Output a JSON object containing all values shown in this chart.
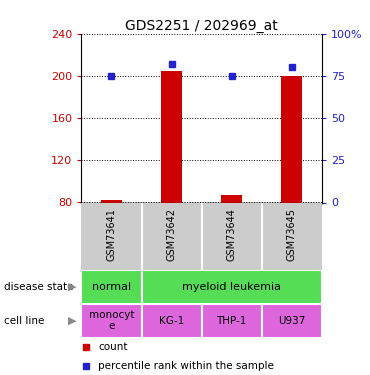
{
  "title": "GDS2251 / 202969_at",
  "samples": [
    "GSM73641",
    "GSM73642",
    "GSM73644",
    "GSM73645"
  ],
  "counts": [
    82,
    205,
    87,
    200
  ],
  "percentiles": [
    75,
    80,
    75,
    80
  ],
  "percentile_raw": [
    75,
    82,
    75,
    80
  ],
  "left_ylim": [
    80,
    240
  ],
  "left_yticks": [
    80,
    120,
    160,
    200,
    240
  ],
  "right_ylim": [
    0,
    100
  ],
  "right_yticks": [
    0,
    25,
    50,
    75,
    100
  ],
  "right_yticklabels": [
    "0",
    "25",
    "50",
    "75",
    "100%"
  ],
  "bar_color": "#cc0000",
  "marker_color": "#2222cc",
  "left_tick_color": "#cc0000",
  "right_tick_color": "#2222cc",
  "disease_state_color": "#55dd55",
  "cell_line_color": "#dd66dd",
  "sample_box_color": "#cccccc",
  "grid_color": "#000000",
  "legend_count_color": "#cc0000",
  "legend_marker_color": "#2222cc",
  "bar_width": 0.35
}
